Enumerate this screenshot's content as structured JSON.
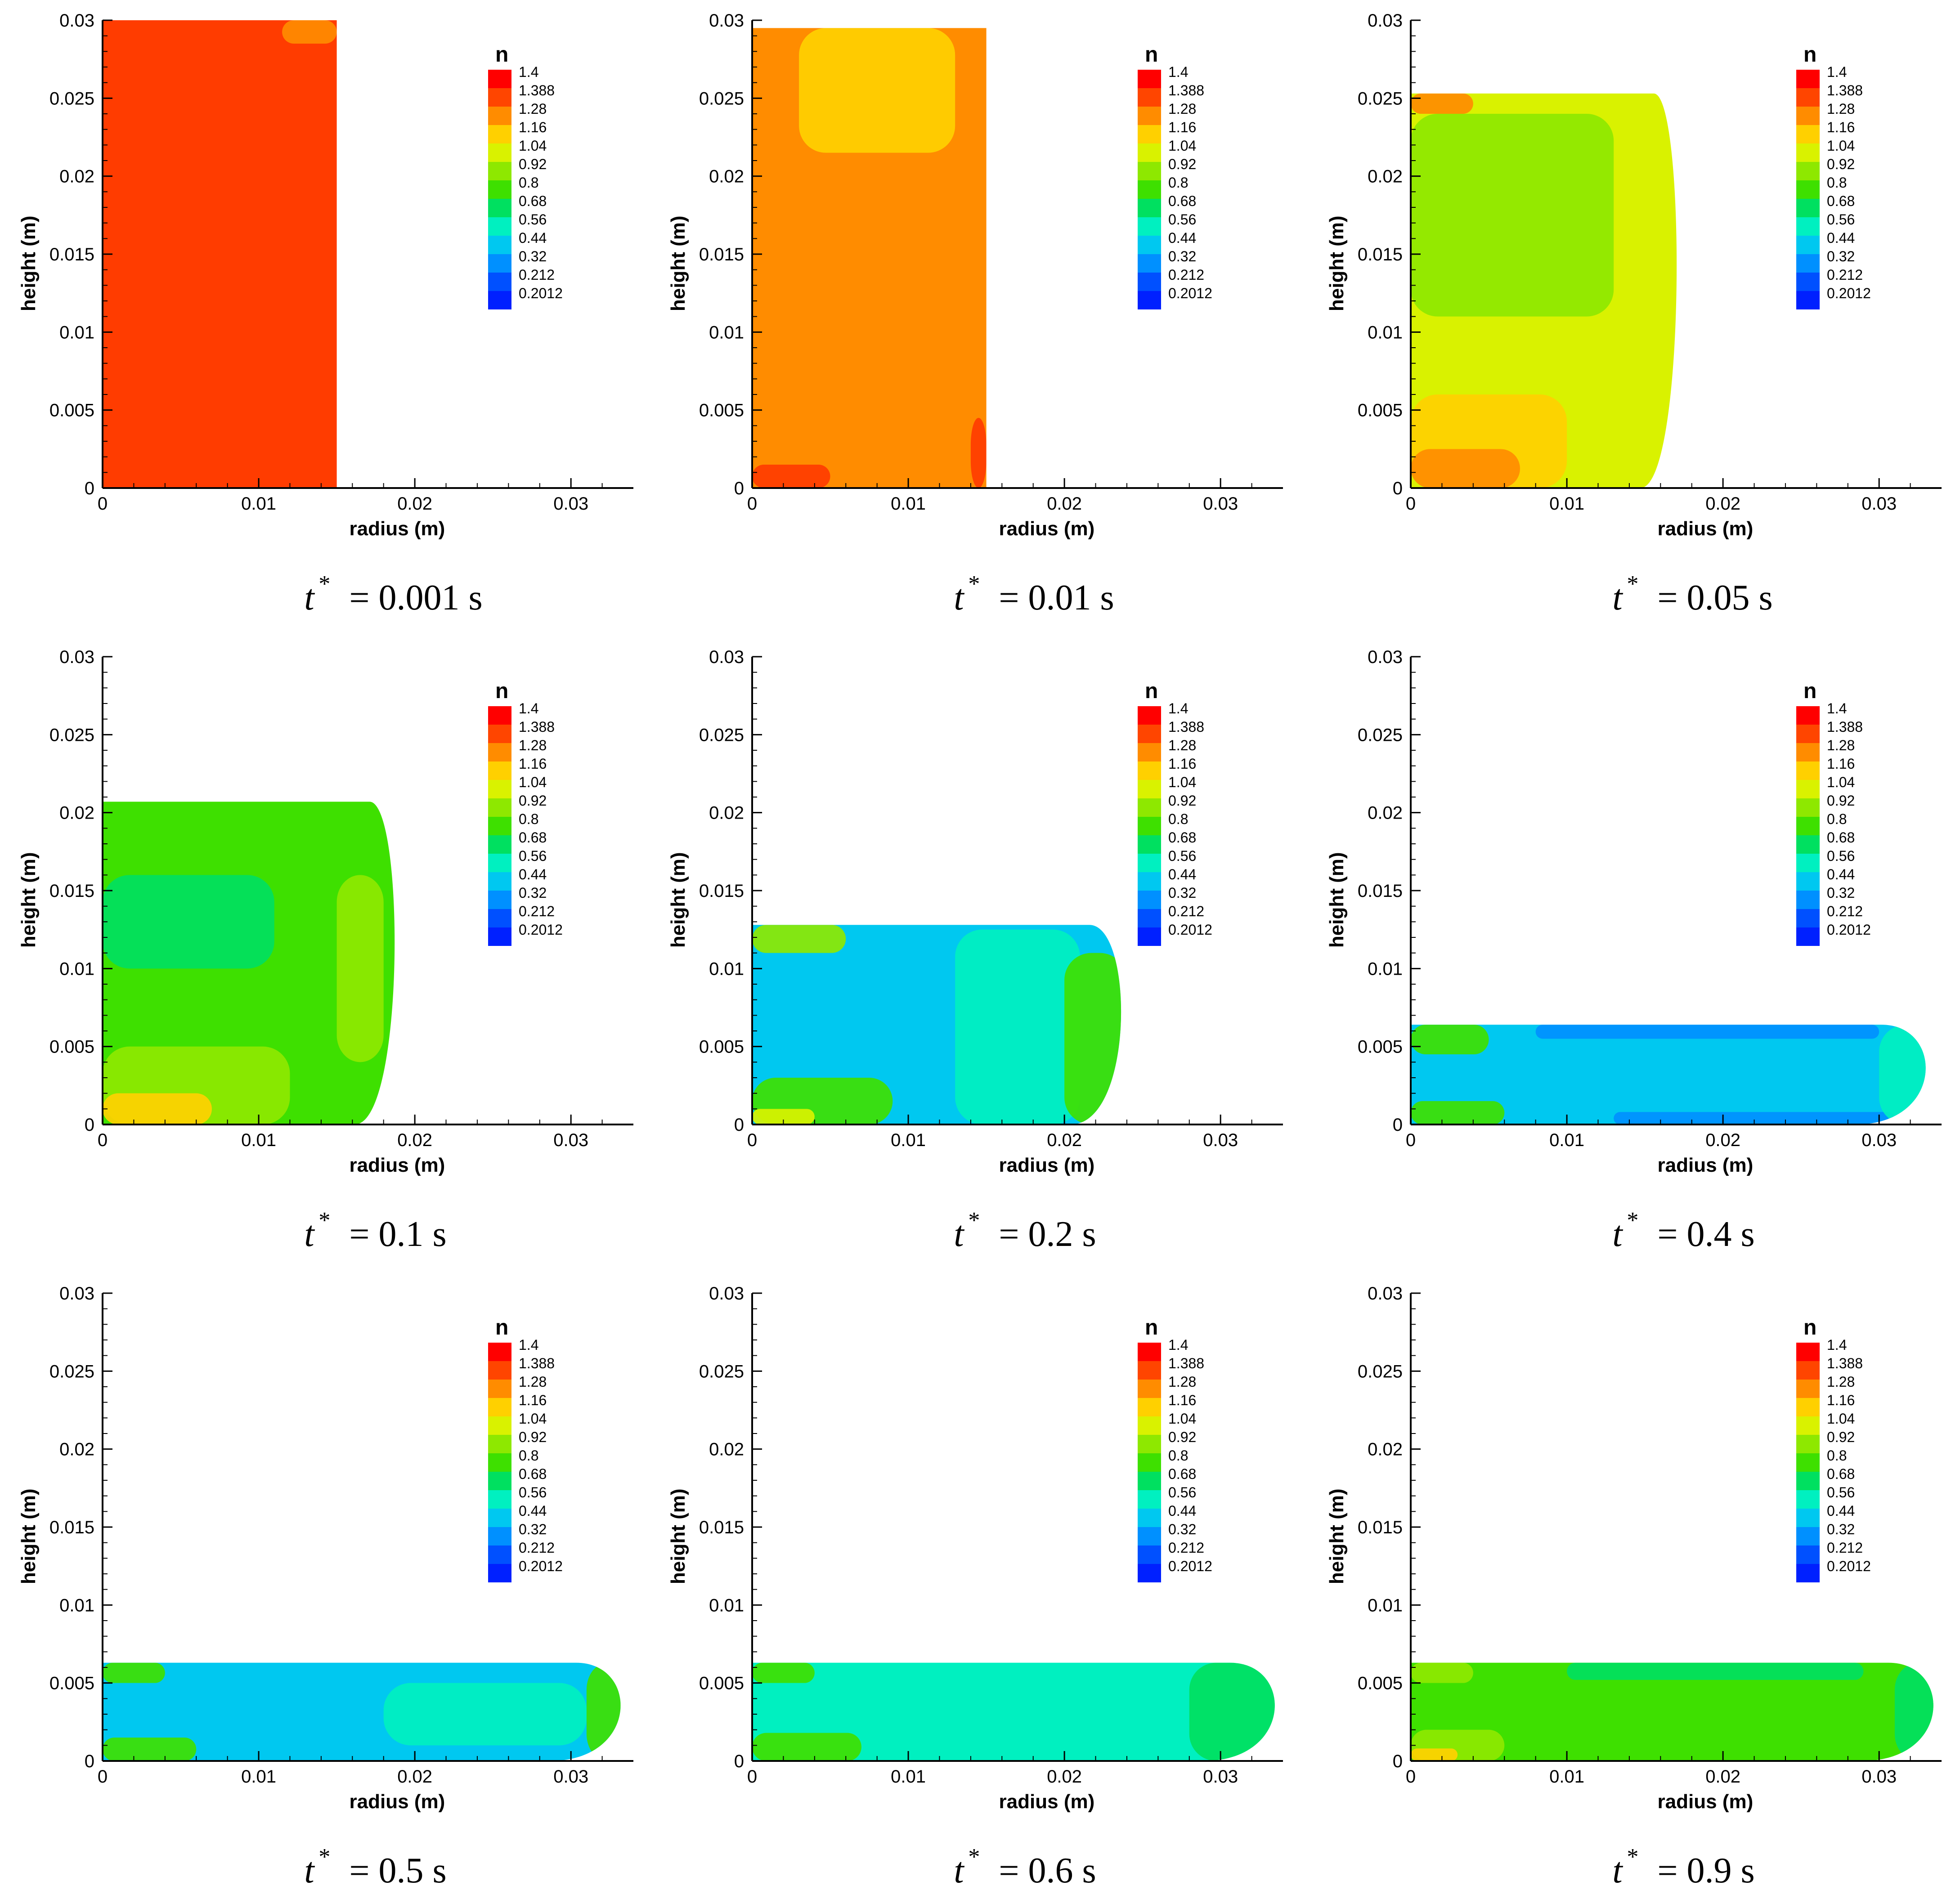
{
  "figure": {
    "field_title": "n",
    "x_label": "radius (m)",
    "y_label": "height (m)"
  },
  "chart_data": {
    "type": "heatmap",
    "variable": "n",
    "xlabel": "radius (m)",
    "ylabel": "height (m)",
    "xlim": [
      0,
      0.034
    ],
    "ylim": [
      0,
      0.03
    ],
    "x_ticks": [
      0,
      0.01,
      0.02,
      0.03
    ],
    "x_tick_labels": [
      "0",
      "0.01",
      "0.02",
      "0.03"
    ],
    "y_ticks": [
      0,
      0.005,
      0.01,
      0.015,
      0.02,
      0.025,
      0.03
    ],
    "y_tick_labels": [
      "0",
      "0.005",
      "0.01",
      "0.015",
      "0.02",
      "0.025",
      "0.03"
    ],
    "legend": {
      "title": "n",
      "levels": [
        "1.4",
        "1.388",
        "1.28",
        "1.16",
        "1.04",
        "0.92",
        "0.8",
        "0.68",
        "0.56",
        "0.44",
        "0.32",
        "0.212",
        "0.2012"
      ],
      "colors": [
        "#ff0000",
        "#ff4500",
        "#ff8c00",
        "#ffd000",
        "#d9f200",
        "#8ee800",
        "#3ee000",
        "#00e060",
        "#00f0c0",
        "#00c8f0",
        "#0090ff",
        "#0050ff",
        "#0020ff"
      ]
    },
    "panels": [
      {
        "caption_time": "t* = 0.001 s",
        "time_s": 0.001,
        "time_label": "= 0.001 s",
        "drop_height_m": 0.03,
        "drop_radius_m": 0.015,
        "dominant_n": 1.388,
        "dominant_color": "#ff3c00",
        "regions": [
          {
            "color": "#ff8c00",
            "x0": 0.0115,
            "x1": 0.015,
            "y0": 0.0285,
            "y1": 0.03
          }
        ]
      },
      {
        "caption_time": "t* = 0.01 s",
        "time_s": 0.01,
        "time_label": "= 0.01 s",
        "drop_height_m": 0.0295,
        "drop_radius_m": 0.015,
        "dominant_n": 1.28,
        "dominant_color": "#ff8c00",
        "regions": [
          {
            "color": "#ffd000",
            "x0": 0.003,
            "x1": 0.013,
            "y0": 0.0215,
            "y1": 0.0295
          },
          {
            "color": "#ff3c00",
            "x0": 0.0,
            "x1": 0.005,
            "y0": 0.0,
            "y1": 0.0015
          },
          {
            "color": "#ff3c00",
            "x0": 0.014,
            "x1": 0.015,
            "y0": 0.0,
            "y1": 0.0045
          }
        ]
      },
      {
        "caption_time": "t* = 0.05 s",
        "time_s": 0.05,
        "time_label": "= 0.05 s",
        "drop_height_m": 0.0253,
        "drop_radius_m": 0.0173,
        "dominant_n": 1.04,
        "dominant_color": "#d9f200",
        "regions": [
          {
            "color": "#8ee800",
            "x0": 0.0,
            "x1": 0.013,
            "y0": 0.011,
            "y1": 0.024
          },
          {
            "color": "#ffd000",
            "x0": 0.0,
            "x1": 0.01,
            "y0": 0.0,
            "y1": 0.006
          },
          {
            "color": "#ff8c00",
            "x0": 0.0,
            "x1": 0.007,
            "y0": 0.0,
            "y1": 0.0025
          },
          {
            "color": "#ff8c00",
            "x0": 0.0,
            "x1": 0.004,
            "y0": 0.024,
            "y1": 0.0253
          }
        ]
      },
      {
        "caption_time": "t* = 0.1 s",
        "time_s": 0.1,
        "time_label": "= 0.1 s",
        "drop_height_m": 0.0207,
        "drop_radius_m": 0.019,
        "dominant_n": 0.8,
        "dominant_color": "#3ee000",
        "regions": [
          {
            "color": "#00e060",
            "x0": 0.0,
            "x1": 0.011,
            "y0": 0.01,
            "y1": 0.016
          },
          {
            "color": "#8ee800",
            "x0": 0.0,
            "x1": 0.012,
            "y0": 0.0,
            "y1": 0.005
          },
          {
            "color": "#ffd000",
            "x0": 0.0,
            "x1": 0.007,
            "y0": 0.0,
            "y1": 0.002
          },
          {
            "color": "#8ee800",
            "x0": 0.015,
            "x1": 0.018,
            "y0": 0.004,
            "y1": 0.016
          }
        ]
      },
      {
        "caption_time": "t* = 0.2 s",
        "time_s": 0.2,
        "time_label": "= 0.2 s",
        "drop_height_m": 0.0128,
        "drop_radius_m": 0.024,
        "dominant_n": 0.44,
        "dominant_color": "#00c8f0",
        "regions": [
          {
            "color": "#00f0c0",
            "x0": 0.013,
            "x1": 0.021,
            "y0": 0.0,
            "y1": 0.0125
          },
          {
            "color": "#3ee000",
            "x0": 0.02,
            "x1": 0.024,
            "y0": 0.0,
            "y1": 0.011
          },
          {
            "color": "#3ee000",
            "x0": 0.0,
            "x1": 0.009,
            "y0": 0.0,
            "y1": 0.003
          },
          {
            "color": "#d9f200",
            "x0": 0.0,
            "x1": 0.004,
            "y0": 0.0,
            "y1": 0.001
          },
          {
            "color": "#8ee800",
            "x0": 0.0,
            "x1": 0.006,
            "y0": 0.011,
            "y1": 0.0128
          }
        ]
      },
      {
        "caption_time": "t* = 0.4 s",
        "time_s": 0.4,
        "time_label": "= 0.4 s",
        "drop_height_m": 0.0064,
        "drop_radius_m": 0.0335,
        "dominant_n": 0.44,
        "dominant_color": "#00c8f0",
        "regions": [
          {
            "color": "#0090ff",
            "x0": 0.013,
            "x1": 0.031,
            "y0": 0.0,
            "y1": 0.0008
          },
          {
            "color": "#0090ff",
            "x0": 0.008,
            "x1": 0.03,
            "y0": 0.0055,
            "y1": 0.0064
          },
          {
            "color": "#00f0c0",
            "x0": 0.03,
            "x1": 0.0335,
            "y0": 0.0,
            "y1": 0.0064
          },
          {
            "color": "#3ee000",
            "x0": 0.0,
            "x1": 0.006,
            "y0": 0.0,
            "y1": 0.0015
          },
          {
            "color": "#3ee000",
            "x0": 0.0,
            "x1": 0.005,
            "y0": 0.0045,
            "y1": 0.0064
          }
        ]
      },
      {
        "caption_time": "t* = 0.5 s",
        "time_s": 0.5,
        "time_label": "= 0.5 s",
        "drop_height_m": 0.0063,
        "drop_radius_m": 0.0337,
        "dominant_n": 0.44,
        "dominant_color": "#00c8f0",
        "regions": [
          {
            "color": "#00f0c0",
            "x0": 0.018,
            "x1": 0.031,
            "y0": 0.001,
            "y1": 0.005
          },
          {
            "color": "#3ee000",
            "x0": 0.031,
            "x1": 0.0337,
            "y0": 0.0,
            "y1": 0.0063
          },
          {
            "color": "#3ee000",
            "x0": 0.0,
            "x1": 0.006,
            "y0": 0.0,
            "y1": 0.0015
          },
          {
            "color": "#3ee000",
            "x0": 0.0,
            "x1": 0.004,
            "y0": 0.005,
            "y1": 0.0063
          }
        ]
      },
      {
        "caption_time": "t* = 0.6 s",
        "time_s": 0.6,
        "time_label": "= 0.6 s",
        "drop_height_m": 0.0063,
        "drop_radius_m": 0.034,
        "dominant_n": 0.56,
        "dominant_color": "#00f0c0",
        "regions": [
          {
            "color": "#00e060",
            "x0": 0.028,
            "x1": 0.034,
            "y0": 0.0,
            "y1": 0.0063
          },
          {
            "color": "#3ee000",
            "x0": 0.0,
            "x1": 0.007,
            "y0": 0.0,
            "y1": 0.0018
          },
          {
            "color": "#3ee000",
            "x0": 0.0,
            "x1": 0.004,
            "y0": 0.005,
            "y1": 0.0063
          }
        ]
      },
      {
        "caption_time": "t* = 0.9 s",
        "time_s": 0.9,
        "time_label": "= 0.9 s",
        "drop_height_m": 0.0063,
        "drop_radius_m": 0.034,
        "dominant_n": 0.8,
        "dominant_color": "#3ee000",
        "regions": [
          {
            "color": "#00e060",
            "x0": 0.01,
            "x1": 0.029,
            "y0": 0.0052,
            "y1": 0.0063
          },
          {
            "color": "#00e060",
            "x0": 0.031,
            "x1": 0.034,
            "y0": 0.0,
            "y1": 0.0063
          },
          {
            "color": "#8ee800",
            "x0": 0.0,
            "x1": 0.006,
            "y0": 0.0,
            "y1": 0.002
          },
          {
            "color": "#ffd000",
            "x0": 0.0,
            "x1": 0.003,
            "y0": 0.0,
            "y1": 0.0008
          },
          {
            "color": "#8ee800",
            "x0": 0.0,
            "x1": 0.004,
            "y0": 0.005,
            "y1": 0.0063
          }
        ]
      }
    ]
  }
}
